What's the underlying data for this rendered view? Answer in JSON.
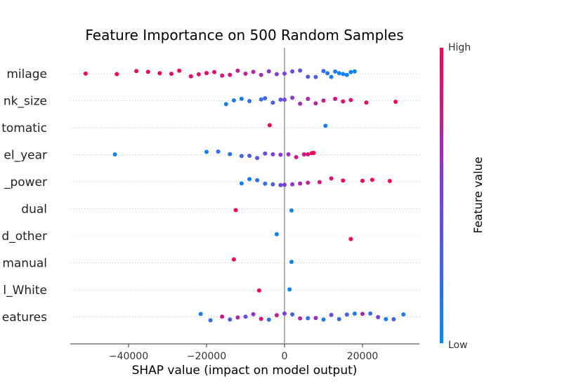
{
  "chart_data": {
    "type": "scatter",
    "title": "Feature Importance on 500 Random Samples",
    "xlabel": "SHAP value (impact on model output)",
    "ylabel": "",
    "xlim": [
      -55000,
      35000
    ],
    "xticks": [
      -40000,
      -20000,
      0,
      20000
    ],
    "xtick_labels": [
      "−40000",
      "−20000",
      "0",
      "20000"
    ],
    "features": [
      "milage",
      "nk_size",
      "tomatic",
      "el_year",
      "_power",
      "dual",
      "d_other",
      "manual",
      "l_White",
      "eatures"
    ],
    "colorbar": {
      "label": "Feature value",
      "high": "High",
      "low": "Low",
      "low_color": "#008bfb",
      "high_color": "#ff0052"
    },
    "grid": false,
    "series": [
      {
        "name": "milage",
        "points": [
          [
            -51000,
            1.0
          ],
          [
            -43000,
            1.0
          ],
          [
            -38000,
            1.0
          ],
          [
            -35000,
            0.95
          ],
          [
            -32000,
            1.0
          ],
          [
            -29000,
            0.9
          ],
          [
            -27000,
            1.0
          ],
          [
            -24000,
            0.95
          ],
          [
            -22000,
            0.9
          ],
          [
            -20000,
            0.95
          ],
          [
            -18000,
            0.9
          ],
          [
            -16000,
            0.85
          ],
          [
            -14000,
            0.85
          ],
          [
            -12000,
            0.8
          ],
          [
            -10000,
            0.75
          ],
          [
            -8000,
            0.7
          ],
          [
            -6000,
            0.65
          ],
          [
            -4000,
            0.6
          ],
          [
            -2000,
            0.55
          ],
          [
            0,
            0.5
          ],
          [
            2000,
            0.45
          ],
          [
            4000,
            0.4
          ],
          [
            6000,
            0.35
          ],
          [
            8000,
            0.3
          ],
          [
            10000,
            0.2
          ],
          [
            11000,
            0.15
          ],
          [
            12000,
            0.12
          ],
          [
            13000,
            0.1
          ],
          [
            14000,
            0.08
          ],
          [
            15000,
            0.06
          ],
          [
            16000,
            0.05
          ],
          [
            17000,
            0.04
          ],
          [
            18000,
            0.03
          ]
        ]
      },
      {
        "name": "nk_size",
        "points": [
          [
            -15000,
            0.05
          ],
          [
            -13000,
            0.1
          ],
          [
            -11000,
            0.1
          ],
          [
            -9000,
            0.15
          ],
          [
            -6000,
            0.2
          ],
          [
            -5000,
            0.25
          ],
          [
            -3000,
            0.3
          ],
          [
            -1000,
            0.35
          ],
          [
            0,
            0.45
          ],
          [
            2000,
            0.55
          ],
          [
            4000,
            0.65
          ],
          [
            6000,
            0.7
          ],
          [
            8000,
            0.75
          ],
          [
            10000,
            0.8
          ],
          [
            13000,
            0.85
          ],
          [
            15000,
            0.9
          ],
          [
            17000,
            0.9
          ],
          [
            21000,
            0.95
          ],
          [
            28500,
            1.0
          ]
        ]
      },
      {
        "name": "tomatic",
        "points": [
          [
            -3800,
            1.0
          ],
          [
            10500,
            0.05
          ]
        ]
      },
      {
        "name": "el_year",
        "points": [
          [
            -43500,
            0.05
          ],
          [
            -20000,
            0.1
          ],
          [
            -17000,
            0.15
          ],
          [
            -14000,
            0.2
          ],
          [
            -11000,
            0.25
          ],
          [
            -9000,
            0.3
          ],
          [
            -7000,
            0.35
          ],
          [
            -5000,
            0.4
          ],
          [
            -3000,
            0.5
          ],
          [
            -1000,
            0.55
          ],
          [
            1000,
            0.65
          ],
          [
            3000,
            0.8
          ],
          [
            5000,
            0.85
          ],
          [
            6000,
            0.9
          ],
          [
            7000,
            0.95
          ],
          [
            7500,
            1.0
          ]
        ]
      },
      {
        "name": "_power",
        "points": [
          [
            -11000,
            0.05
          ],
          [
            -9000,
            0.1
          ],
          [
            -7000,
            0.15
          ],
          [
            -5000,
            0.2
          ],
          [
            -3000,
            0.3
          ],
          [
            -1000,
            0.4
          ],
          [
            0,
            0.5
          ],
          [
            2000,
            0.6
          ],
          [
            4000,
            0.7
          ],
          [
            6000,
            0.75
          ],
          [
            9000,
            0.85
          ],
          [
            12000,
            0.9
          ],
          [
            15000,
            0.95
          ],
          [
            20000,
            1.0
          ],
          [
            22500,
            1.0
          ],
          [
            27000,
            1.0
          ]
        ]
      },
      {
        "name": "dual",
        "points": [
          [
            -12500,
            1.0
          ],
          [
            1800,
            0.05
          ]
        ]
      },
      {
        "name": "d_other",
        "points": [
          [
            -2000,
            0.05
          ],
          [
            17000,
            1.0
          ]
        ]
      },
      {
        "name": "manual",
        "points": [
          [
            -13000,
            1.0
          ],
          [
            1800,
            0.05
          ]
        ]
      },
      {
        "name": "l_White",
        "points": [
          [
            -6500,
            1.0
          ],
          [
            1300,
            0.05
          ]
        ]
      },
      {
        "name": "eatures",
        "points": [
          [
            -21500,
            0.1
          ],
          [
            -19000,
            0.2
          ],
          [
            -16000,
            0.8
          ],
          [
            -14000,
            0.3
          ],
          [
            -12000,
            0.7
          ],
          [
            -10000,
            0.4
          ],
          [
            -8000,
            0.6
          ],
          [
            -6000,
            0.9
          ],
          [
            -4000,
            0.2
          ],
          [
            -2000,
            0.8
          ],
          [
            0,
            0.5
          ],
          [
            2000,
            0.3
          ],
          [
            4000,
            0.7
          ],
          [
            6000,
            0.2
          ],
          [
            8000,
            0.6
          ],
          [
            10000,
            0.1
          ],
          [
            12000,
            0.4
          ],
          [
            14000,
            0.2
          ],
          [
            16000,
            0.3
          ],
          [
            18000,
            0.1
          ],
          [
            20000,
            0.7
          ],
          [
            22000,
            0.2
          ],
          [
            24000,
            0.5
          ],
          [
            26000,
            0.1
          ],
          [
            28000,
            0.3
          ],
          [
            30500,
            0.1
          ]
        ]
      }
    ]
  }
}
